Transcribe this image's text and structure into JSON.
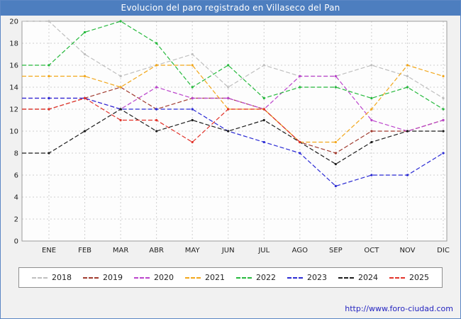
{
  "title": "Evolucion del paro registrado en Villaseco del Pan",
  "footer_url": "http://www.foro-ciudad.com",
  "chart_data": {
    "type": "line",
    "title": "Evolucion del paro registrado en Villaseco del Pan",
    "categories": [
      "ENE",
      "FEB",
      "MAR",
      "ABR",
      "MAY",
      "JUN",
      "JUL",
      "AGO",
      "SEP",
      "OCT",
      "NOV",
      "DIC"
    ],
    "xlabel": "",
    "ylabel": "",
    "ylim": [
      0,
      20
    ],
    "ytick_step": 2,
    "grid": true,
    "legend_position": "bottom",
    "series": [
      {
        "name": "2018",
        "color": "#bfbfbf",
        "values": [
          20,
          17,
          15,
          16,
          17,
          14,
          16,
          15,
          15,
          16,
          15,
          13
        ]
      },
      {
        "name": "2019",
        "color": "#a03a2e",
        "values": [
          12,
          13,
          14,
          12,
          13,
          13,
          12,
          9,
          8,
          10,
          10,
          11
        ]
      },
      {
        "name": "2020",
        "color": "#bb44cc",
        "values": [
          13,
          13,
          12,
          14,
          13,
          13,
          12,
          15,
          15,
          11,
          10,
          11
        ]
      },
      {
        "name": "2021",
        "color": "#f2a71b",
        "values": [
          15,
          15,
          14,
          16,
          16,
          12,
          12,
          9,
          9,
          12,
          16,
          15
        ]
      },
      {
        "name": "2022",
        "color": "#25b93c",
        "values": [
          16,
          19,
          20,
          18,
          14,
          16,
          13,
          14,
          14,
          13,
          14,
          12
        ]
      },
      {
        "name": "2023",
        "color": "#2a2ad4",
        "values": [
          13,
          13,
          12,
          12,
          12,
          10,
          9,
          8,
          5,
          6,
          6,
          8
        ]
      },
      {
        "name": "2024",
        "color": "#1c1c1c",
        "values": [
          8,
          10,
          12,
          10,
          11,
          10,
          11,
          9,
          7,
          9,
          10,
          10
        ]
      },
      {
        "name": "2025",
        "color": "#e23229",
        "values": [
          12,
          13,
          11,
          11,
          9,
          12,
          12,
          9
        ]
      }
    ]
  }
}
